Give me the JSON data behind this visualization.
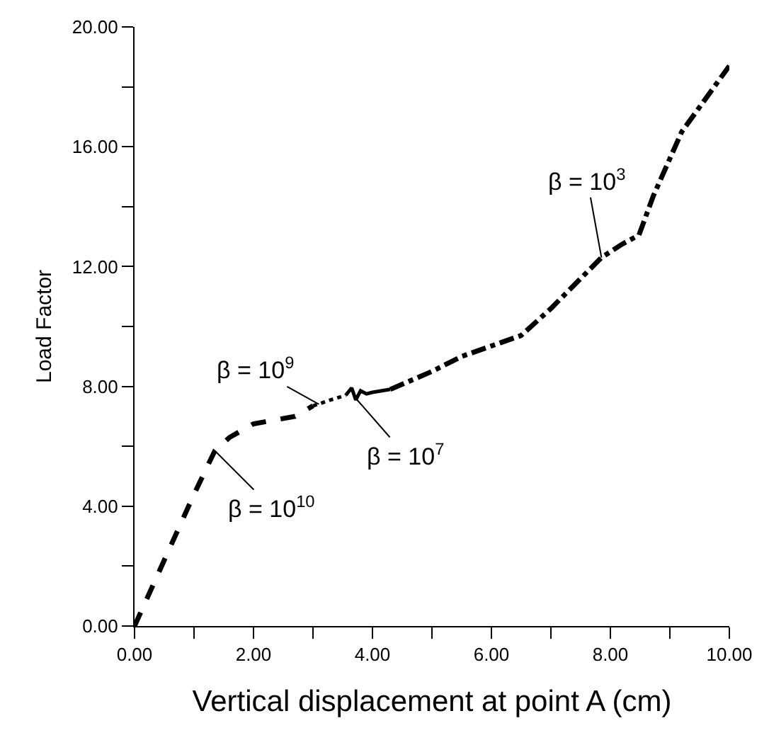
{
  "chart_data": {
    "type": "line",
    "xlabel": "Vertical displacement at point A (cm)",
    "ylabel": "Load Factor",
    "series": [
      {
        "color": "#000000",
        "line_style": "dashed",
        "x": [
          0,
          0.5,
          1.0,
          1.35,
          1.6,
          2.0,
          2.7,
          3.0
        ],
        "values": [
          0,
          2.2,
          4.4,
          5.85,
          6.3,
          6.75,
          7.0,
          7.35
        ]
      },
      {
        "color": "#000000",
        "line_style": "dotted",
        "x": [
          3.0,
          3.3,
          3.55
        ],
        "values": [
          7.35,
          7.55,
          7.7
        ]
      },
      {
        "color": "#000000",
        "line_style": "solid",
        "x": [
          3.55,
          3.65,
          3.72,
          3.8,
          3.9,
          4.0,
          4.3
        ],
        "values": [
          7.7,
          7.95,
          7.55,
          7.85,
          7.75,
          7.8,
          7.9
        ]
      },
      {
        "color": "#000000",
        "line_style": "dashdot",
        "x": [
          4.3,
          5.0,
          5.5,
          6.0,
          6.5,
          7.0,
          7.5,
          7.85,
          8.2,
          8.48,
          8.72,
          9.2,
          10.0
        ],
        "values": [
          7.9,
          8.5,
          9.0,
          9.35,
          9.7,
          10.6,
          11.6,
          12.3,
          12.75,
          13.05,
          14.35,
          16.5,
          18.7
        ]
      }
    ],
    "xlim": [
      0,
      10
    ],
    "ylim": [
      0,
      20
    ],
    "xticks": [
      {
        "value": 0,
        "label": "0.00"
      },
      {
        "value": 1,
        "label": null
      },
      {
        "value": 2,
        "label": "2.00"
      },
      {
        "value": 3,
        "label": null
      },
      {
        "value": 4,
        "label": "4.00"
      },
      {
        "value": 5,
        "label": null
      },
      {
        "value": 6,
        "label": "6.00"
      },
      {
        "value": 7,
        "label": null
      },
      {
        "value": 8,
        "label": "8.00"
      },
      {
        "value": 9,
        "label": null
      },
      {
        "value": 10,
        "label": "10.00"
      }
    ],
    "yticks": [
      {
        "value": 0,
        "label": "0.00"
      },
      {
        "value": 2,
        "label": null
      },
      {
        "value": 4,
        "label": "4.00"
      },
      {
        "value": 6,
        "label": null
      },
      {
        "value": 8,
        "label": "8.00"
      },
      {
        "value": 10,
        "label": null
      },
      {
        "value": 12,
        "label": "12.00"
      },
      {
        "value": 14,
        "label": null
      },
      {
        "value": 16,
        "label": "16.00"
      },
      {
        "value": 18,
        "label": null
      },
      {
        "value": 20,
        "label": "20.00"
      }
    ],
    "annotations": [
      {
        "text": "β = 10$^{10}$",
        "x": 1.35,
        "y": 5.85
      },
      {
        "text": "β = 10$^{9}$",
        "x": 3.1,
        "y": 7.4
      },
      {
        "text": "β = 10$^{7}$",
        "x": 3.72,
        "y": 7.6
      },
      {
        "text": "β = 10$^{3}$",
        "x": 7.85,
        "y": 12.3
      }
    ],
    "marker": "none"
  }
}
